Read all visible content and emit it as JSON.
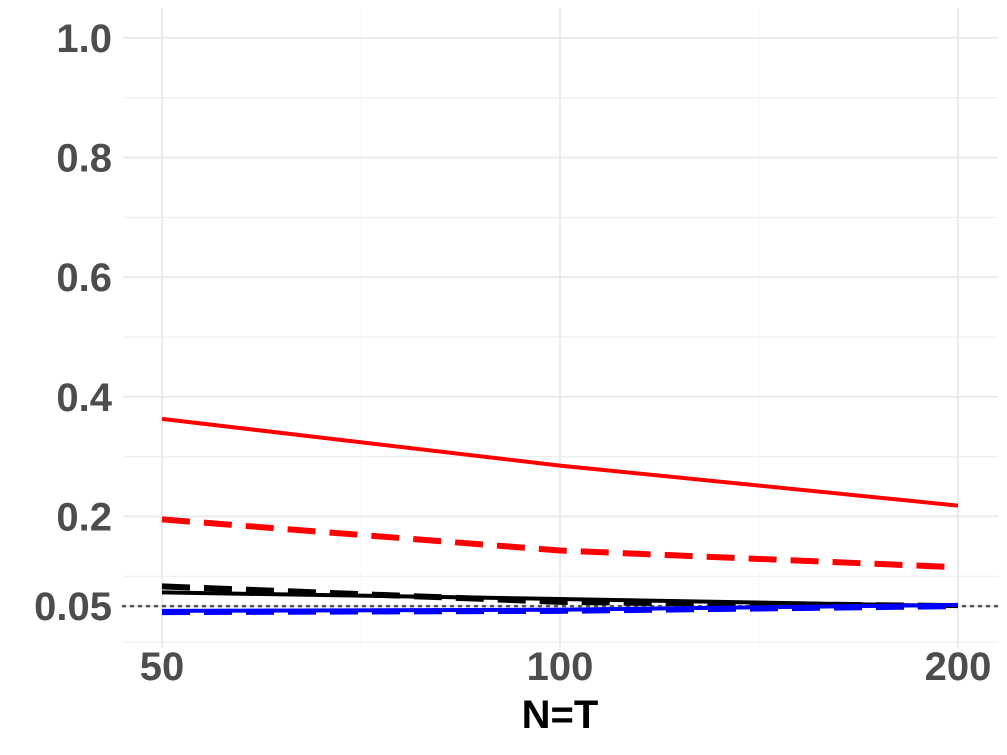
{
  "chart_data": {
    "type": "line",
    "title": "",
    "xlabel": "N=T",
    "ylabel": "",
    "x": [
      50,
      100,
      200
    ],
    "x_tick_labels": [
      "50",
      "100",
      "200"
    ],
    "y_ticks": [
      0.05,
      0.2,
      0.4,
      0.6,
      0.8,
      1.0
    ],
    "y_tick_labels": [
      "0.05",
      "0.2",
      "0.4",
      "0.6",
      "0.8",
      "1.0"
    ],
    "ylim": [
      -0.02,
      1.05
    ],
    "reference_line": {
      "value": 0.05,
      "style": "dotted",
      "color": "#555555"
    },
    "grid": true,
    "legend": "none",
    "series": [
      {
        "color": "#ff0000",
        "dash": "solid",
        "values": [
          0.363,
          0.285,
          0.218
        ]
      },
      {
        "color": "#ff0000",
        "dash": "dashed",
        "values": [
          0.195,
          0.143,
          0.115
        ]
      },
      {
        "color": "#000000",
        "dash": "dashed",
        "values": [
          0.083,
          0.057,
          0.05
        ]
      },
      {
        "color": "#000000",
        "dash": "solid",
        "values": [
          0.073,
          0.062,
          0.05
        ]
      },
      {
        "color": "#0000ff",
        "dash": "dashed",
        "values": [
          0.04,
          0.042,
          0.05
        ]
      },
      {
        "color": "#0000ff",
        "dash": "solid",
        "values": [
          0.042,
          0.044,
          0.052
        ]
      }
    ]
  }
}
